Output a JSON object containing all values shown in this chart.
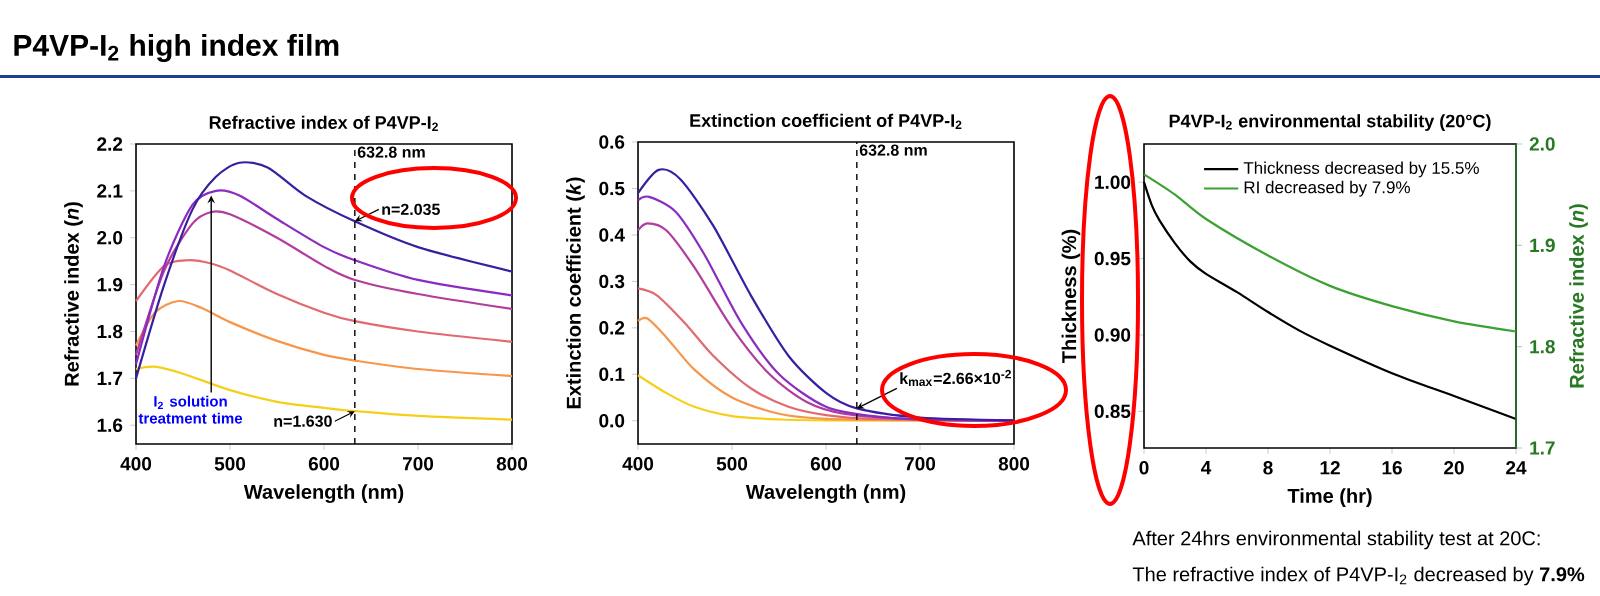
{
  "chart_data": [
    {
      "type": "line",
      "title": "Refractive index of P4VP-I$_{2}$",
      "xlabel": "Wavelength (nm)",
      "ylabel": "Refractive index (*n*)",
      "series": [
        {
          "color": "#f5cf1a",
          "x": [
            400,
            420,
            450,
            500,
            550,
            600,
            632.8,
            700,
            800
          ],
          "values": [
            1.72,
            1.725,
            1.71,
            1.675,
            1.65,
            1.637,
            1.63,
            1.62,
            1.612
          ]
        },
        {
          "color": "#f7964a",
          "x": [
            400,
            420,
            445,
            470,
            500,
            550,
            600,
            632.8,
            700,
            800
          ],
          "values": [
            1.77,
            1.84,
            1.865,
            1.85,
            1.82,
            1.78,
            1.75,
            1.738,
            1.72,
            1.705
          ]
        },
        {
          "color": "#e06a6e",
          "x": [
            400,
            430,
            455,
            480,
            500,
            550,
            600,
            632.8,
            700,
            800
          ],
          "values": [
            1.865,
            1.94,
            1.952,
            1.945,
            1.93,
            1.88,
            1.84,
            1.822,
            1.8,
            1.778
          ]
        },
        {
          "color": "#b23d9a",
          "x": [
            400,
            430,
            460,
            480,
            500,
            550,
            600,
            632.8,
            700,
            800
          ],
          "values": [
            1.75,
            1.93,
            2.03,
            2.055,
            2.05,
            2.0,
            1.94,
            1.91,
            1.88,
            1.848
          ]
        },
        {
          "color": "#8b2bc0",
          "x": [
            400,
            430,
            460,
            485,
            510,
            550,
            600,
            632.8,
            700,
            800
          ],
          "values": [
            1.73,
            1.94,
            2.07,
            2.1,
            2.09,
            2.04,
            1.98,
            1.952,
            1.91,
            1.877
          ]
        },
        {
          "color": "#3a1ea0",
          "x": [
            400,
            430,
            460,
            485,
            510,
            540,
            580,
            632.8,
            700,
            800
          ],
          "values": [
            1.7,
            1.9,
            2.06,
            2.13,
            2.16,
            2.15,
            2.09,
            2.035,
            1.98,
            1.928
          ]
        }
      ],
      "xlim": [
        400,
        800
      ],
      "xticks": [
        400,
        500,
        600,
        700,
        800
      ],
      "ylim": [
        1.56,
        2.2
      ],
      "yticks": [
        1.6,
        1.7,
        1.8,
        1.9,
        {
          "value": 2.0,
          "label": "2.0"
        },
        2.1,
        2.2
      ],
      "ref_lines": [
        {
          "axis": "x",
          "value": 632.8,
          "label": "632.8 nm",
          "color": "#000000",
          "line_style": "dashed"
        }
      ],
      "annotations": [
        "P4VP-I$_{2}$ high index film",
        "I$_{2}$ solution treatment time",
        "n=2.035",
        "n=1.630"
      ]
    },
    {
      "type": "line",
      "title": "Extinction coefficient of P4VP-I$_{2}$",
      "xlabel": "Wavelength (nm)",
      "ylabel": "Extinction coefficient (*k*)",
      "series": [
        {
          "color": "#f5cf1a",
          "x": [
            400,
            430,
            460,
            500,
            550,
            600,
            800
          ],
          "values": [
            0.098,
            0.06,
            0.03,
            0.01,
            0.003,
            0.001,
            0
          ]
        },
        {
          "color": "#f7964a",
          "x": [
            400,
            410,
            430,
            460,
            500,
            550,
            600,
            700,
            800
          ],
          "values": [
            0.215,
            0.22,
            0.18,
            0.11,
            0.05,
            0.015,
            0.004,
            0.001,
            0
          ]
        },
        {
          "color": "#e06a6e",
          "x": [
            400,
            420,
            450,
            480,
            520,
            560,
            600,
            650,
            800
          ],
          "values": [
            0.285,
            0.27,
            0.21,
            0.14,
            0.07,
            0.03,
            0.012,
            0.004,
            0
          ]
        },
        {
          "color": "#b23d9a",
          "x": [
            400,
            410,
            430,
            460,
            500,
            540,
            580,
            620,
            700,
            800
          ],
          "values": [
            0.41,
            0.425,
            0.41,
            0.33,
            0.2,
            0.1,
            0.04,
            0.015,
            0.003,
            0
          ]
        },
        {
          "color": "#8b2bc0",
          "x": [
            400,
            412,
            440,
            470,
            510,
            550,
            600,
            650,
            700,
            800
          ],
          "values": [
            0.475,
            0.482,
            0.45,
            0.36,
            0.21,
            0.1,
            0.03,
            0.01,
            0.003,
            0
          ]
        },
        {
          "color": "#3a1ea0",
          "x": [
            400,
            422,
            445,
            480,
            520,
            560,
            600,
            632.8,
            700,
            800
          ],
          "values": [
            0.49,
            0.54,
            0.52,
            0.42,
            0.27,
            0.14,
            0.06,
            0.0266,
            0.007,
            0.001
          ]
        }
      ],
      "xlim": [
        400,
        800
      ],
      "xticks": [
        400,
        500,
        600,
        700,
        800
      ],
      "ylim": [
        -0.05,
        0.6
      ],
      "yticks": [
        {
          "value": 0,
          "label": "0.0"
        },
        0.1,
        0.2,
        0.3,
        0.4,
        0.5,
        0.6
      ],
      "ref_lines": [
        {
          "axis": "x",
          "value": 632.8,
          "label": "632.8 nm",
          "color": "#000000",
          "line_style": "dashed"
        }
      ],
      "annotations": [
        "k$_{max}$=2.66×10$^{-2}$"
      ]
    },
    {
      "type": "line",
      "title": "P4VP-I$_{2}$ environmental stability (20°C)",
      "xlabel": "Time (hr)",
      "ylabel": "Thickness (%)",
      "y2label": "Refractive index (*n*)",
      "series": [
        {
          "name": "Thickness decreased by 15.5%",
          "color": "#000000",
          "x": [
            0,
            0.5,
            1,
            2,
            3,
            4,
            6,
            8,
            10,
            12,
            16,
            20,
            24
          ],
          "values": [
            1.0,
            0.985,
            0.975,
            0.96,
            0.948,
            0.94,
            0.928,
            0.915,
            0.903,
            0.893,
            0.875,
            0.86,
            0.845
          ]
        },
        {
          "name": "RI decreased by 7.9%",
          "color": "#3aa132",
          "axis": "y2",
          "x": [
            0,
            2,
            4,
            8,
            12,
            16,
            20,
            24
          ],
          "values": [
            1.97,
            1.95,
            1.926,
            1.89,
            1.86,
            1.84,
            1.825,
            1.815
          ]
        }
      ],
      "xlim": [
        0,
        24
      ],
      "xticks": [
        0,
        4,
        8,
        12,
        16,
        20,
        24
      ],
      "ylim": [
        0.826,
        1.025
      ],
      "yticks": [
        0.85,
        {
          "value": 0.9,
          "label": "0.90"
        },
        0.95,
        {
          "value": 1.0,
          "label": "1.00"
        }
      ],
      "y2lim": [
        1.7,
        2.0
      ],
      "y2ticks": [
        1.7,
        1.8,
        1.9,
        {
          "value": 2.0,
          "label": "2.0"
        }
      ],
      "legend": "top right",
      "annotations": [
        "After 24hrs environmental stability test at 20C:",
        "The refractive index of P4VP-I$_{2}$ decreased by **7.9%**"
      ]
    }
  ]
}
